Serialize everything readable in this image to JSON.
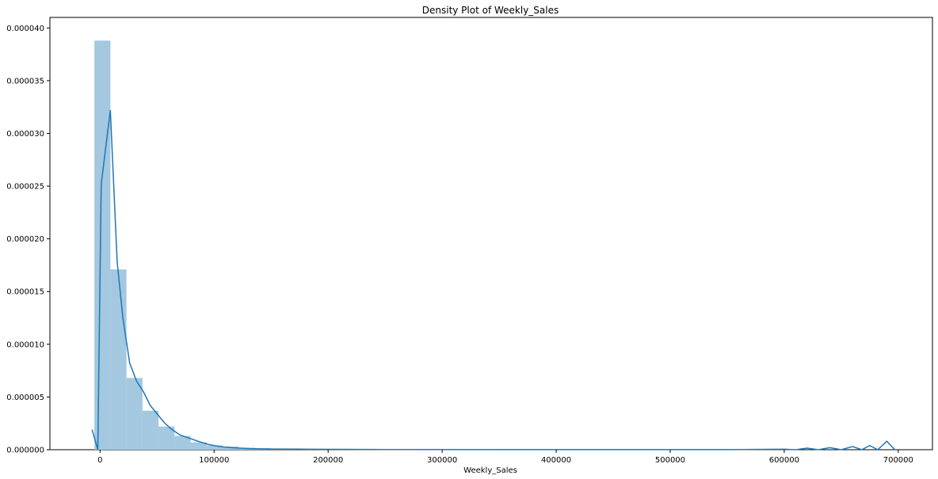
{
  "chart_data": {
    "type": "histogram+kde",
    "title": "Density Plot of Weekly_Sales",
    "xlabel": "Weekly_Sales",
    "ylabel": "",
    "xlim": [
      -44000,
      730000
    ],
    "ylim": [
      0,
      4.1e-05
    ],
    "grid": false,
    "legend": "none",
    "x_ticks": [
      0,
      100000,
      200000,
      300000,
      400000,
      500000,
      600000,
      700000
    ],
    "y_ticks": [
      0.0,
      5e-06,
      1e-05,
      1.5e-05,
      2e-05,
      2.5e-05,
      3e-05,
      3.5e-05,
      4e-05
    ],
    "y_tick_labels": [
      "0.000000",
      "0.000005",
      "0.000010",
      "0.000015",
      "0.000020",
      "0.000025",
      "0.000030",
      "0.000035",
      "0.000040"
    ],
    "histogram": {
      "color": "#a3c8e0",
      "bins": [
        {
          "x0": -4988,
          "x1": 9074,
          "density": 3.88e-05
        },
        {
          "x0": 9074,
          "x1": 23136,
          "density": 1.71e-05
        },
        {
          "x0": 23136,
          "x1": 37198,
          "density": 6.8e-06
        },
        {
          "x0": 37198,
          "x1": 51260,
          "density": 3.7e-06
        },
        {
          "x0": 51260,
          "x1": 65322,
          "density": 2.2e-06
        },
        {
          "x0": 65322,
          "x1": 79384,
          "density": 1.3e-06
        },
        {
          "x0": 79384,
          "x1": 93446,
          "density": 7e-07
        },
        {
          "x0": 93446,
          "x1": 107508,
          "density": 4e-07
        },
        {
          "x0": 107508,
          "x1": 121570,
          "density": 3e-07
        },
        {
          "x0": 121570,
          "x1": 135632,
          "density": 2e-07
        },
        {
          "x0": 135632,
          "x1": 149694,
          "density": 1.5e-07
        },
        {
          "x0": 149694,
          "x1": 163756,
          "density": 1e-07
        },
        {
          "x0": 163756,
          "x1": 177818,
          "density": 8e-08
        },
        {
          "x0": 177818,
          "x1": 191880,
          "density": 5e-08
        }
      ]
    },
    "kde": {
      "color": "#1f77b4",
      "points": [
        [
          -7000,
          1.9e-06
        ],
        [
          -2000,
          0.0
        ],
        [
          1000,
          2.52e-05
        ],
        [
          9000,
          3.22e-05
        ],
        [
          15000,
          1.78e-05
        ],
        [
          20000,
          1.25e-05
        ],
        [
          26000,
          8.2e-06
        ],
        [
          32000,
          6.5e-06
        ],
        [
          38000,
          5.5e-06
        ],
        [
          44000,
          4.2e-06
        ],
        [
          50000,
          3.4e-06
        ],
        [
          56000,
          2.6e-06
        ],
        [
          62000,
          2e-06
        ],
        [
          70000,
          1.4e-06
        ],
        [
          78000,
          1.1e-06
        ],
        [
          86000,
          8e-07
        ],
        [
          95000,
          5e-07
        ],
        [
          105000,
          3e-07
        ],
        [
          115000,
          2e-07
        ],
        [
          130000,
          1e-07
        ],
        [
          150000,
          7e-08
        ],
        [
          180000,
          5e-08
        ],
        [
          250000,
          2e-08
        ],
        [
          400000,
          1e-08
        ],
        [
          550000,
          1e-08
        ],
        [
          600000,
          5e-08
        ],
        [
          610000,
          0.0
        ],
        [
          620000,
          1.5e-07
        ],
        [
          630000,
          0.0
        ],
        [
          640000,
          2e-07
        ],
        [
          650000,
          0.0
        ],
        [
          660000,
          3e-07
        ],
        [
          668000,
          0.0
        ],
        [
          675000,
          4e-07
        ],
        [
          682000,
          0.0
        ],
        [
          690000,
          8e-07
        ],
        [
          697000,
          0.0
        ]
      ]
    }
  }
}
